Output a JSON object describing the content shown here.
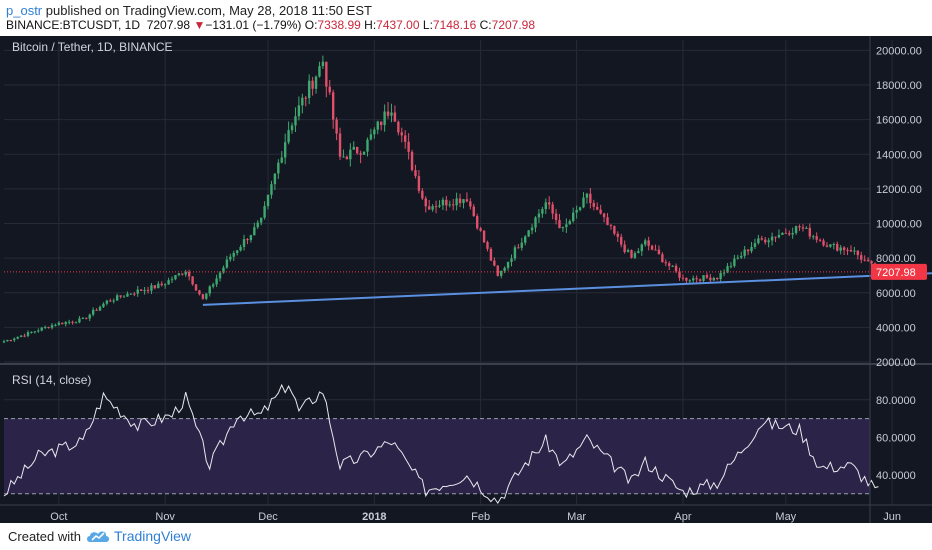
{
  "header": {
    "user": "p_ostr",
    "published_text": "published on TradingView.com, May 28, 2018 11:50 EST",
    "symbol_line": "BINANCE:BTCUSDT, 1D",
    "last": "7207.98",
    "change": "−131.01 (−1.79%)",
    "open_label": "O:",
    "open": "7338.99",
    "high_label": "H:",
    "high": "7437.00",
    "low_label": "L:",
    "low": "7148.16",
    "close_label": "C:",
    "close": "7207.98",
    "down_arrow": "▼"
  },
  "footer": {
    "created_with": "Created with",
    "brand": "TradingView",
    "icon": "tradingview-cloud-icon"
  },
  "colors": {
    "background": "#131722",
    "grid": "#262b38",
    "up": "#3fa86f",
    "down": "#e0506a",
    "trendline": "#5b8fe0",
    "rsi_band": "#2b2448",
    "rsi_line": "#e8e8ee",
    "price_tag": "#f23645"
  },
  "chart_data": [
    {
      "type": "candlestick",
      "title": "Bitcoin / Tether, 1D, BINANCE",
      "ylim": [
        2000,
        20600
      ],
      "y_ticks": [
        "2000.00",
        "4000.00",
        "6000.00",
        "8000.00",
        "10000.00",
        "12000.00",
        "14000.00",
        "16000.00",
        "18000.00",
        "20000.00"
      ],
      "x_ticks": [
        "Oct",
        "Nov",
        "Dec",
        "2018",
        "Feb",
        "Mar",
        "Apr",
        "May",
        "Jun"
      ],
      "last_price": 7207.98,
      "last_price_label": "7207.98",
      "trendline": {
        "points": [
          {
            "date": "2017-11-12",
            "price": 5300
          },
          {
            "date": "2018-06-21",
            "price": 7200
          }
        ]
      },
      "close_series": [
        {
          "date": "2017-09-15",
          "close": 3200
        },
        {
          "date": "2017-09-22",
          "close": 3650
        },
        {
          "date": "2017-09-30",
          "close": 4200
        },
        {
          "date": "2017-10-08",
          "close": 4450
        },
        {
          "date": "2017-10-15",
          "close": 5500
        },
        {
          "date": "2017-10-22",
          "close": 6000
        },
        {
          "date": "2017-10-31",
          "close": 6450
        },
        {
          "date": "2017-11-07",
          "close": 7300
        },
        {
          "date": "2017-11-12",
          "close": 5600
        },
        {
          "date": "2017-11-20",
          "close": 8100
        },
        {
          "date": "2017-11-29",
          "close": 10100
        },
        {
          "date": "2017-12-07",
          "close": 15500
        },
        {
          "date": "2017-12-17",
          "close": 19400
        },
        {
          "date": "2017-12-22",
          "close": 13800
        },
        {
          "date": "2017-12-29",
          "close": 14400
        },
        {
          "date": "2018-01-06",
          "close": 16800
        },
        {
          "date": "2018-01-16",
          "close": 11000
        },
        {
          "date": "2018-01-28",
          "close": 11500
        },
        {
          "date": "2018-02-06",
          "close": 6900
        },
        {
          "date": "2018-02-14",
          "close": 9400
        },
        {
          "date": "2018-02-20",
          "close": 11200
        },
        {
          "date": "2018-02-25",
          "close": 9600
        },
        {
          "date": "2018-03-04",
          "close": 11500
        },
        {
          "date": "2018-03-17",
          "close": 8000
        },
        {
          "date": "2018-03-21",
          "close": 8900
        },
        {
          "date": "2018-04-01",
          "close": 6800
        },
        {
          "date": "2018-04-11",
          "close": 6900
        },
        {
          "date": "2018-04-22",
          "close": 8900
        },
        {
          "date": "2018-05-05",
          "close": 9800
        },
        {
          "date": "2018-05-14",
          "close": 8700
        },
        {
          "date": "2018-05-20",
          "close": 8500
        },
        {
          "date": "2018-05-28",
          "close": 7208
        }
      ]
    },
    {
      "type": "line",
      "title": "RSI (14, close)",
      "ylim": [
        24,
        98
      ],
      "y_ticks": [
        "40.0000",
        "60.0000",
        "80.0000"
      ],
      "levels": [
        30,
        70
      ],
      "series": [
        {
          "values": [
            {
              "date": "2017-09-15",
              "value": 30
            },
            {
              "date": "2017-09-25",
              "value": 50
            },
            {
              "date": "2017-10-08",
              "value": 58
            },
            {
              "date": "2017-10-14",
              "value": 82
            },
            {
              "date": "2017-10-24",
              "value": 66
            },
            {
              "date": "2017-11-03",
              "value": 72
            },
            {
              "date": "2017-11-07",
              "value": 81
            },
            {
              "date": "2017-11-11",
              "value": 60
            },
            {
              "date": "2017-11-14",
              "value": 45
            },
            {
              "date": "2017-11-22",
              "value": 72
            },
            {
              "date": "2017-11-29",
              "value": 72
            },
            {
              "date": "2017-12-07",
              "value": 89
            },
            {
              "date": "2017-12-10",
              "value": 74
            },
            {
              "date": "2017-12-17",
              "value": 85
            },
            {
              "date": "2017-12-22",
              "value": 45
            },
            {
              "date": "2017-12-29",
              "value": 50
            },
            {
              "date": "2018-01-06",
              "value": 58
            },
            {
              "date": "2018-01-16",
              "value": 32
            },
            {
              "date": "2018-01-28",
              "value": 40
            },
            {
              "date": "2018-02-06",
              "value": 26
            },
            {
              "date": "2018-02-14",
              "value": 46
            },
            {
              "date": "2018-02-20",
              "value": 58
            },
            {
              "date": "2018-02-25",
              "value": 45
            },
            {
              "date": "2018-03-04",
              "value": 59
            },
            {
              "date": "2018-03-17",
              "value": 36
            },
            {
              "date": "2018-03-21",
              "value": 47
            },
            {
              "date": "2018-04-01",
              "value": 31
            },
            {
              "date": "2018-04-11",
              "value": 36
            },
            {
              "date": "2018-04-24",
              "value": 68
            },
            {
              "date": "2018-05-05",
              "value": 64
            },
            {
              "date": "2018-05-11",
              "value": 44
            },
            {
              "date": "2018-05-20",
              "value": 45
            },
            {
              "date": "2018-05-28",
              "value": 31
            }
          ]
        }
      ]
    }
  ]
}
